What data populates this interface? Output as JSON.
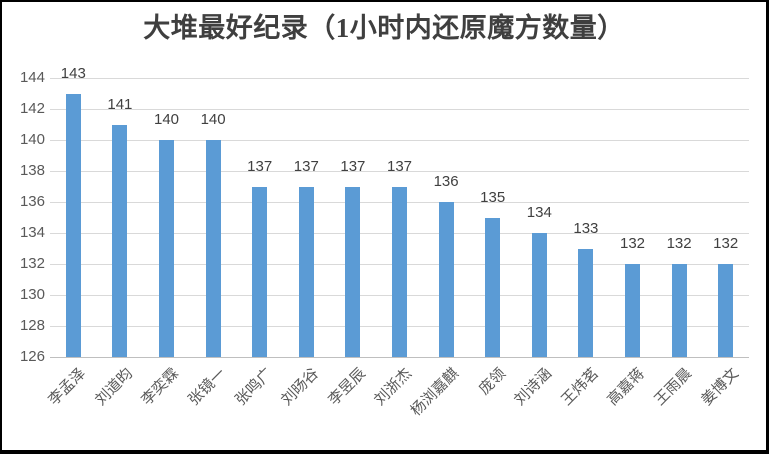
{
  "window": {
    "border_color": "#000000",
    "background_color": "#ffffff"
  },
  "chart_data": {
    "type": "bar",
    "title": "大堆最好纪录（1小时内还原魔方数量）",
    "categories": [
      "李孟泽",
      "刘道昀",
      "李奕霖",
      "张镜一",
      "张鸣广",
      "刘旸谷",
      "李昱辰",
      "刘浙杰",
      "杨浏嘉麒",
      "庞领",
      "刘诗涵",
      "王炜茗",
      "高嘉蒋",
      "王雨晨",
      "姜博文"
    ],
    "values": [
      143,
      141,
      140,
      140,
      137,
      137,
      137,
      137,
      136,
      135,
      134,
      133,
      132,
      132,
      132
    ],
    "data_labels_visible": true,
    "xlabel": "",
    "ylabel": "",
    "ylim": [
      126,
      144
    ],
    "ytick_step": 2,
    "yticks": [
      126,
      128,
      130,
      132,
      134,
      136,
      138,
      140,
      142,
      144
    ],
    "grid": true,
    "legend_position": "none",
    "category_label_rotation_deg": 45,
    "colors": {
      "bar": "#5b9bd5",
      "gridline": "#d9d9d9",
      "axis_line": "#bfbfbf",
      "title_text": "#3f3f3f",
      "value_label_text": "#404040",
      "axis_text": "#595959"
    }
  }
}
